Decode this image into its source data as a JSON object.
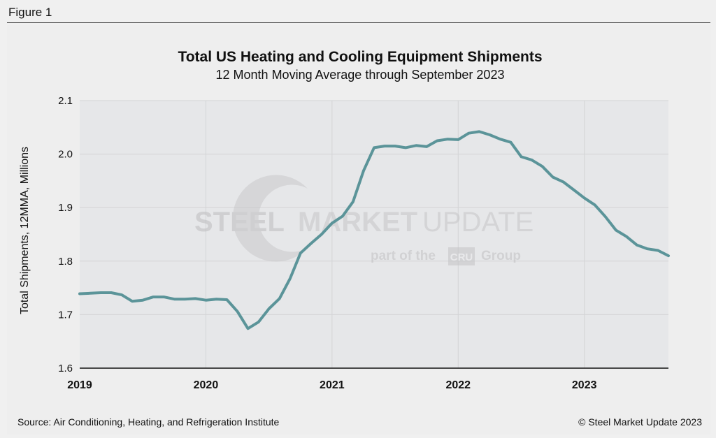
{
  "figure_label": "Figure 1",
  "source": "Source: Air Conditioning, Heating, and Refrigeration Institute",
  "copyright": "© Steel Market Update 2023",
  "watermark": {
    "brand": "STEEL",
    "brand2": "MARKET",
    "brand3": "UPDATE",
    "tagline_pre": "part of the",
    "tagline_logo": "CRU",
    "tagline_post": "Group"
  },
  "colors": {
    "line": "#5b9499",
    "plot_bg": "#e6e7e9",
    "grid": "#d3d4d6"
  },
  "chart_data": {
    "type": "line",
    "title": "Total US Heating and Cooling Equipment Shipments",
    "subtitle": "12 Month Moving Average through September 2023",
    "xlabel": "",
    "ylabel": "Total Shipments, 12MMA, Millions",
    "ylim": [
      1.6,
      2.1
    ],
    "yticks": [
      "1.6",
      "1.7",
      "1.8",
      "1.9",
      "2.0",
      "2.1"
    ],
    "xticks": [
      "2019",
      "2020",
      "2021",
      "2022",
      "2023"
    ],
    "x_start": "2019-01",
    "x_end": "2023-09",
    "grid": true,
    "series": [
      {
        "name": "Total Shipments 12MMA",
        "x": [
          "2019-01",
          "2019-02",
          "2019-03",
          "2019-04",
          "2019-05",
          "2019-06",
          "2019-07",
          "2019-08",
          "2019-09",
          "2019-10",
          "2019-11",
          "2019-12",
          "2020-01",
          "2020-02",
          "2020-03",
          "2020-04",
          "2020-05",
          "2020-06",
          "2020-07",
          "2020-08",
          "2020-09",
          "2020-10",
          "2020-11",
          "2020-12",
          "2021-01",
          "2021-02",
          "2021-03",
          "2021-04",
          "2021-05",
          "2021-06",
          "2021-07",
          "2021-08",
          "2021-09",
          "2021-10",
          "2021-11",
          "2021-12",
          "2022-01",
          "2022-02",
          "2022-03",
          "2022-04",
          "2022-05",
          "2022-06",
          "2022-07",
          "2022-08",
          "2022-09",
          "2022-10",
          "2022-11",
          "2022-12",
          "2023-01",
          "2023-02",
          "2023-03",
          "2023-04",
          "2023-05",
          "2023-06",
          "2023-07",
          "2023-08",
          "2023-09"
        ],
        "values": [
          1.739,
          1.74,
          1.741,
          1.741,
          1.737,
          1.725,
          1.727,
          1.733,
          1.733,
          1.729,
          1.729,
          1.73,
          1.727,
          1.729,
          1.728,
          1.706,
          1.674,
          1.686,
          1.711,
          1.73,
          1.767,
          1.815,
          1.833,
          1.85,
          1.871,
          1.884,
          1.911,
          1.969,
          2.012,
          2.015,
          2.015,
          2.012,
          2.016,
          2.014,
          2.025,
          2.028,
          2.027,
          2.039,
          2.042,
          2.036,
          2.028,
          2.022,
          1.995,
          1.989,
          1.977,
          1.957,
          1.948,
          1.933,
          1.918,
          1.905,
          1.883,
          1.858,
          1.846,
          1.83,
          1.823,
          1.82,
          1.81
        ]
      }
    ]
  }
}
